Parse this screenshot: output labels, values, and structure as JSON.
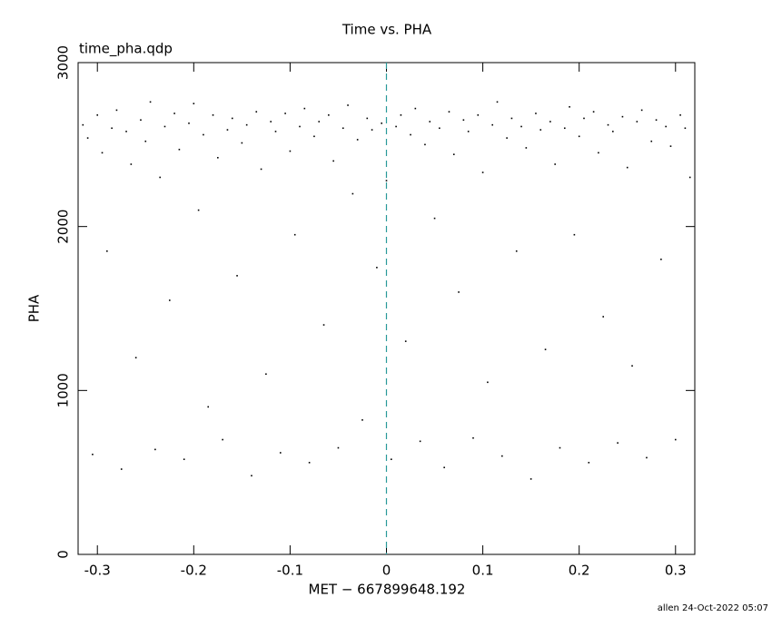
{
  "chart_data": {
    "type": "scatter",
    "title": "Time vs. PHA",
    "subtitle": "time_pha.qdp",
    "xlabel": "MET − 667899648.192",
    "ylabel": "PHA",
    "footer": "allen 24-Oct-2022 05:07",
    "xlim": [
      -0.32,
      0.32
    ],
    "ylim": [
      0,
      3000
    ],
    "xticks": [
      -0.3,
      -0.2,
      -0.1,
      0,
      0.1,
      0.2,
      0.3
    ],
    "yticks": [
      0,
      1000,
      2000,
      3000
    ],
    "vline": 0,
    "vline_color": "#2a9a9a",
    "color": "#000000",
    "x": [
      -0.315,
      -0.31,
      -0.305,
      -0.3,
      -0.295,
      -0.29,
      -0.285,
      -0.28,
      -0.275,
      -0.27,
      -0.265,
      -0.26,
      -0.255,
      -0.25,
      -0.245,
      -0.24,
      -0.235,
      -0.23,
      -0.225,
      -0.22,
      -0.215,
      -0.21,
      -0.205,
      -0.2,
      -0.195,
      -0.19,
      -0.185,
      -0.18,
      -0.175,
      -0.17,
      -0.165,
      -0.16,
      -0.155,
      -0.15,
      -0.145,
      -0.14,
      -0.135,
      -0.13,
      -0.125,
      -0.12,
      -0.115,
      -0.11,
      -0.105,
      -0.1,
      -0.095,
      -0.09,
      -0.085,
      -0.08,
      -0.075,
      -0.07,
      -0.065,
      -0.06,
      -0.055,
      -0.05,
      -0.045,
      -0.04,
      -0.035,
      -0.03,
      -0.025,
      -0.02,
      -0.015,
      -0.01,
      -0.005,
      0,
      0.005,
      0.01,
      0.015,
      0.02,
      0.025,
      0.03,
      0.035,
      0.04,
      0.045,
      0.05,
      0.055,
      0.06,
      0.065,
      0.07,
      0.075,
      0.08,
      0.085,
      0.09,
      0.095,
      0.1,
      0.105,
      0.11,
      0.115,
      0.12,
      0.125,
      0.13,
      0.135,
      0.14,
      0.145,
      0.15,
      0.155,
      0.16,
      0.165,
      0.17,
      0.175,
      0.18,
      0.185,
      0.19,
      0.195,
      0.2,
      0.205,
      0.21,
      0.215,
      0.22,
      0.225,
      0.23,
      0.235,
      0.24,
      0.245,
      0.25,
      0.255,
      0.26,
      0.265,
      0.27,
      0.275,
      0.28,
      0.285,
      0.29,
      0.295,
      0.3,
      0.305,
      0.31,
      0.315
    ],
    "values": [
      2620,
      2540,
      610,
      2680,
      2450,
      1850,
      2600,
      2710,
      520,
      2580,
      2380,
      1200,
      2650,
      2520,
      2760,
      640,
      2300,
      2610,
      1550,
      2690,
      2470,
      580,
      2630,
      2750,
      2100,
      2560,
      900,
      2680,
      2420,
      700,
      2590,
      2660,
      1700,
      2510,
      2620,
      480,
      2700,
      2350,
      1100,
      2640,
      2580,
      620,
      2690,
      2460,
      1950,
      2610,
      2720,
      560,
      2550,
      2640,
      1400,
      2680,
      2400,
      650,
      2600,
      2740,
      2200,
      2530,
      820,
      2660,
      2590,
      1750,
      2630,
      2280,
      580,
      2610,
      2680,
      1300,
      2560,
      2720,
      690,
      2500,
      2640,
      2050,
      2600,
      530,
      2700,
      2440,
      1600,
      2650,
      2580,
      710,
      2680,
      2330,
      1050,
      2620,
      2760,
      600,
      2540,
      2660,
      1850,
      2610,
      2480,
      460,
      2690,
      2590,
      1250,
      2640,
      2380,
      650,
      2600,
      2730,
      1950,
      2550,
      2660,
      560,
      2700,
      2450,
      1450,
      2620,
      2580,
      680,
      2670,
      2360,
      1150,
      2640,
      2710,
      590,
      2520,
      2650,
      1800,
      2610,
      2490,
      700,
      2680,
      2600,
      2300
    ]
  }
}
